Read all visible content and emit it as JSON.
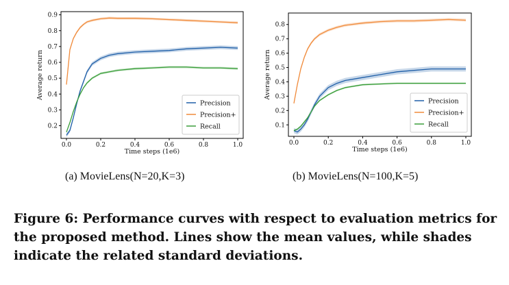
{
  "chart_data": [
    {
      "type": "line",
      "subtitle": "(a)  MovieLens(N=20,K=3)",
      "xlabel": "Time steps (1e6)",
      "ylabel": "Average return",
      "xlim": [
        0.0,
        1.0
      ],
      "ylim": [
        0.12,
        0.92
      ],
      "xticks": [
        "0.0",
        "0.2",
        "0.4",
        "0.6",
        "0.8",
        "1.0"
      ],
      "xtick_values": [
        0.0,
        0.2,
        0.4,
        0.6,
        0.8,
        1.0
      ],
      "yticks": [
        "0.2",
        "0.3",
        "0.4",
        "0.5",
        "0.6",
        "0.7",
        "0.8",
        "0.9"
      ],
      "ytick_values": [
        0.2,
        0.3,
        0.4,
        0.5,
        0.6,
        0.7,
        0.8,
        0.9
      ],
      "legend_position": "bottom-right",
      "x": [
        0.0,
        0.02,
        0.04,
        0.06,
        0.08,
        0.1,
        0.12,
        0.15,
        0.2,
        0.25,
        0.3,
        0.4,
        0.5,
        0.6,
        0.7,
        0.8,
        0.9,
        1.0
      ],
      "series": [
        {
          "name": "Precision",
          "color": "#1f5fa8",
          "values": [
            0.14,
            0.17,
            0.25,
            0.34,
            0.42,
            0.48,
            0.54,
            0.59,
            0.625,
            0.645,
            0.655,
            0.665,
            0.67,
            0.675,
            0.685,
            0.69,
            0.695,
            0.69
          ],
          "std": 0.012
        },
        {
          "name": "Precision+",
          "color": "#f08a3a",
          "values": [
            0.46,
            0.68,
            0.75,
            0.79,
            0.82,
            0.84,
            0.855,
            0.865,
            0.875,
            0.88,
            0.878,
            0.878,
            0.875,
            0.87,
            0.865,
            0.86,
            0.855,
            0.85
          ],
          "std": 0.008
        },
        {
          "name": "Recall",
          "color": "#3a9e3a",
          "values": [
            0.16,
            0.22,
            0.29,
            0.35,
            0.4,
            0.44,
            0.47,
            0.5,
            0.53,
            0.54,
            0.55,
            0.56,
            0.565,
            0.57,
            0.57,
            0.565,
            0.565,
            0.56
          ],
          "std": 0.007
        }
      ]
    },
    {
      "type": "line",
      "subtitle": "(b)  MovieLens(N=100,K=5)",
      "xlabel": "Time steps (1e6)",
      "ylabel": "Average return",
      "xlim": [
        0.0,
        1.0
      ],
      "ylim": [
        0.02,
        0.88
      ],
      "xticks": [
        "0.0",
        "0.2",
        "0.4",
        "0.6",
        "0.8",
        "1.0"
      ],
      "xtick_values": [
        0.0,
        0.2,
        0.4,
        0.6,
        0.8,
        1.0
      ],
      "yticks": [
        "0.1",
        "0.2",
        "0.3",
        "0.4",
        "0.5",
        "0.6",
        "0.7",
        "0.8"
      ],
      "ytick_values": [
        0.1,
        0.2,
        0.3,
        0.4,
        0.5,
        0.6,
        0.7,
        0.8
      ],
      "legend_position": "bottom-right",
      "x": [
        0.0,
        0.02,
        0.04,
        0.06,
        0.08,
        0.1,
        0.12,
        0.15,
        0.2,
        0.25,
        0.3,
        0.4,
        0.5,
        0.6,
        0.7,
        0.8,
        0.9,
        1.0
      ],
      "series": [
        {
          "name": "Precision",
          "color": "#1f5fa8",
          "values": [
            0.06,
            0.05,
            0.07,
            0.1,
            0.14,
            0.19,
            0.24,
            0.3,
            0.36,
            0.39,
            0.41,
            0.43,
            0.45,
            0.47,
            0.48,
            0.49,
            0.49,
            0.49
          ],
          "std": 0.018
        },
        {
          "name": "Precision+",
          "color": "#f08a3a",
          "values": [
            0.25,
            0.38,
            0.49,
            0.57,
            0.63,
            0.67,
            0.7,
            0.73,
            0.76,
            0.78,
            0.795,
            0.81,
            0.82,
            0.825,
            0.825,
            0.83,
            0.835,
            0.83
          ],
          "std": 0.01
        },
        {
          "name": "Recall",
          "color": "#3a9e3a",
          "values": [
            0.06,
            0.07,
            0.09,
            0.12,
            0.15,
            0.19,
            0.23,
            0.27,
            0.31,
            0.34,
            0.36,
            0.38,
            0.385,
            0.39,
            0.39,
            0.39,
            0.39,
            0.39
          ],
          "std": 0.006
        }
      ]
    }
  ],
  "caption": "Figure 6: Performance curves with respect to evaluation metrics for the proposed method. Lines show the mean values, while shades indicate the related standard deviations."
}
